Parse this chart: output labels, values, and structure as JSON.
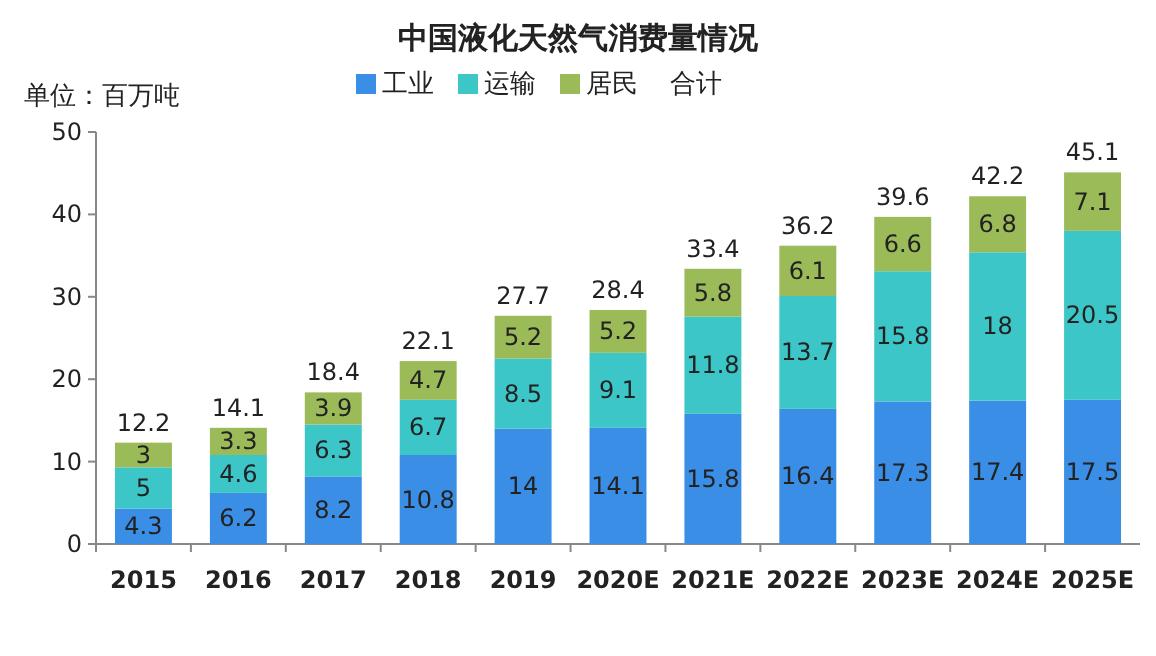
{
  "chart_data": {
    "type": "bar",
    "title": "中国液化天然气消费量情况",
    "ylabel": "单位：百万吨",
    "stacked": true,
    "data_labels": true,
    "legend": "top",
    "grid": false,
    "categories": [
      "2015",
      "2016",
      "2017",
      "2018",
      "2019",
      "2020E",
      "2021E",
      "2022E",
      "2023E",
      "2024E",
      "2025E"
    ],
    "series": [
      {
        "name": "工业",
        "color": "#3a8ee6",
        "values": [
          4.3,
          6.2,
          8.2,
          10.8,
          14,
          14.1,
          15.8,
          16.4,
          17.3,
          17.4,
          17.5
        ]
      },
      {
        "name": "运输",
        "color": "#3cc6c8",
        "values": [
          5,
          4.6,
          6.3,
          6.7,
          8.5,
          9.1,
          11.8,
          13.7,
          15.8,
          18,
          20.5
        ]
      },
      {
        "name": "居民",
        "color": "#9bbb59",
        "values": [
          3,
          3.3,
          3.9,
          4.7,
          5.2,
          5.2,
          5.8,
          6.1,
          6.6,
          6.8,
          7.1
        ]
      }
    ],
    "totals": [
      "12.2",
      "14.1",
      "18.4",
      "22.1",
      "27.7",
      "28.4",
      "33.4",
      "36.2",
      "39.6",
      "42.2",
      "45.1"
    ],
    "annotations": [
      "合计"
    ],
    "ylim": [
      0,
      50
    ],
    "yticks": [
      0,
      10,
      20,
      30,
      40,
      50
    ]
  }
}
